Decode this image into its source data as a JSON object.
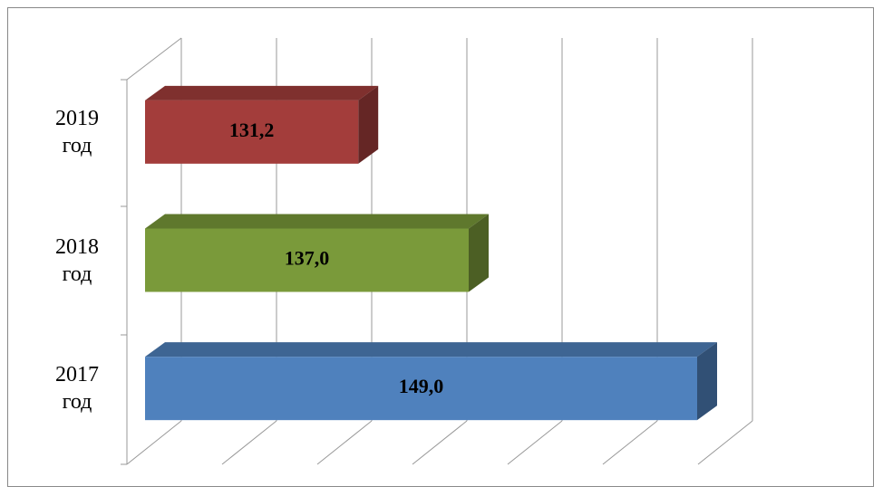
{
  "chart_data": {
    "type": "bar3d-horizontal",
    "categories": [
      "2017 год",
      "2018 год",
      "2019 год"
    ],
    "values": [
      149.0,
      137.0,
      131.2
    ],
    "value_labels": [
      "149,0",
      "137,0",
      "131,2"
    ],
    "colors": [
      "#4f81bd",
      "#7a9a3a",
      "#a33d3b"
    ],
    "xlim": [
      120,
      150
    ],
    "xticks": [
      120,
      125,
      130,
      135,
      140,
      145,
      150
    ],
    "grid": true
  }
}
